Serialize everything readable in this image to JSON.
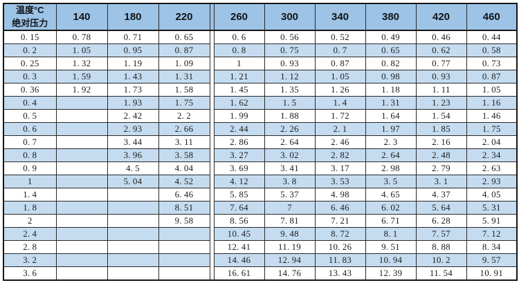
{
  "colors": {
    "header_bg": "#9DC3E6",
    "row_alt_bg": "#C5DCF0",
    "row_bg": "#FFFFFF",
    "border": "#141414",
    "text": "#1D1D1D"
  },
  "chart_data": {
    "type": "table",
    "corner": {
      "column_axis_label": "温度°C",
      "row_axis_label": "绝对压力"
    },
    "columns": [
      140,
      180,
      220,
      260,
      300,
      340,
      380,
      420,
      460
    ],
    "rows": [
      {
        "pressure": 0.15,
        "values": [
          0.78,
          0.71,
          0.65,
          0.6,
          0.56,
          0.52,
          0.49,
          0.46,
          0.44
        ]
      },
      {
        "pressure": 0.2,
        "values": [
          1.05,
          0.95,
          0.87,
          0.8,
          0.75,
          0.7,
          0.65,
          0.62,
          0.58
        ]
      },
      {
        "pressure": 0.25,
        "values": [
          1.32,
          1.19,
          1.09,
          1,
          0.93,
          0.87,
          0.82,
          0.77,
          0.73
        ]
      },
      {
        "pressure": 0.3,
        "values": [
          1.59,
          1.43,
          1.31,
          1.21,
          1.12,
          1.05,
          0.98,
          0.93,
          0.87
        ]
      },
      {
        "pressure": 0.36,
        "values": [
          1.92,
          1.73,
          1.58,
          1.45,
          1.35,
          1.26,
          1.18,
          1.11,
          1.05
        ]
      },
      {
        "pressure": 0.4,
        "values": [
          null,
          1.93,
          1.75,
          1.62,
          1.5,
          1.4,
          1.31,
          1.23,
          1.16
        ]
      },
      {
        "pressure": 0.5,
        "values": [
          null,
          2.42,
          2.2,
          1.99,
          1.88,
          1.72,
          1.64,
          1.54,
          1.46
        ]
      },
      {
        "pressure": 0.6,
        "values": [
          null,
          2.93,
          2.66,
          2.44,
          2.26,
          2.1,
          1.97,
          1.85,
          1.75
        ]
      },
      {
        "pressure": 0.7,
        "values": [
          null,
          3.44,
          3.11,
          2.86,
          2.64,
          2.46,
          2.3,
          2.16,
          2.04
        ]
      },
      {
        "pressure": 0.8,
        "values": [
          null,
          3.96,
          3.58,
          3.27,
          3.02,
          2.82,
          2.64,
          2.48,
          2.34
        ]
      },
      {
        "pressure": 0.9,
        "values": [
          null,
          4.5,
          4.04,
          3.69,
          3.41,
          3.17,
          2.98,
          2.79,
          2.63
        ]
      },
      {
        "pressure": 1,
        "values": [
          null,
          5.04,
          4.52,
          4.12,
          3.8,
          3.53,
          3.5,
          3.1,
          2.93
        ]
      },
      {
        "pressure": 1.4,
        "values": [
          null,
          null,
          6.46,
          5.85,
          5.37,
          4.98,
          4.65,
          4.37,
          4.05
        ]
      },
      {
        "pressure": 1.8,
        "values": [
          null,
          null,
          8.51,
          7.64,
          7,
          6.46,
          6.02,
          5.64,
          5.31
        ]
      },
      {
        "pressure": 2,
        "values": [
          null,
          null,
          9.58,
          8.56,
          7.81,
          7.21,
          6.71,
          6.28,
          5.91
        ]
      },
      {
        "pressure": 2.4,
        "values": [
          null,
          null,
          null,
          10.45,
          9.48,
          8.72,
          8.1,
          7.57,
          7.12
        ]
      },
      {
        "pressure": 2.8,
        "values": [
          null,
          null,
          null,
          12.41,
          11.19,
          10.26,
          9.51,
          8.88,
          8.34
        ]
      },
      {
        "pressure": 3.2,
        "values": [
          null,
          null,
          null,
          14.46,
          12.94,
          11.83,
          10.94,
          10.2,
          9.57
        ]
      },
      {
        "pressure": 3.6,
        "values": [
          null,
          null,
          null,
          16.61,
          14.76,
          13.43,
          12.39,
          11.54,
          10.91
        ]
      }
    ]
  }
}
